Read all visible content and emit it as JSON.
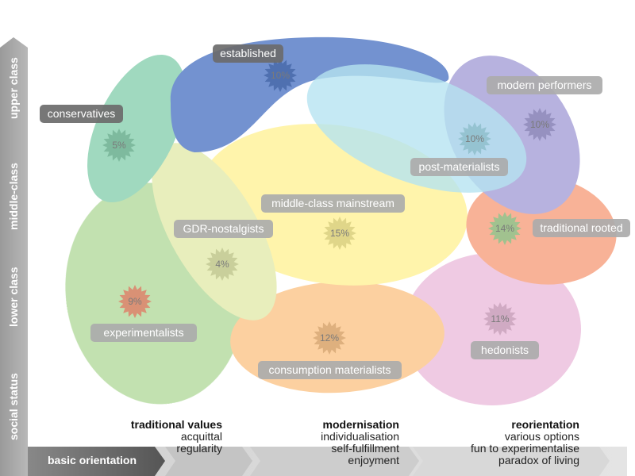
{
  "vertical_axis": {
    "labels": [
      "upper class",
      "middle-class",
      "lower class",
      "social status"
    ]
  },
  "horizontal_axis": {
    "label": "basic orientation",
    "groups": [
      {
        "title": "traditional values",
        "lines": [
          "acquittal",
          "regularity"
        ]
      },
      {
        "title": "modernisation",
        "lines": [
          "individualisation",
          "self-fulfillment",
          "enjoyment"
        ]
      },
      {
        "title": "reorientation",
        "lines": [
          "various options",
          "fun to experimentalise",
          "paradox of living"
        ]
      }
    ]
  },
  "milieus": [
    {
      "id": "conservatives",
      "label": "conservatives",
      "percent": "5%",
      "color": "#8fd3b4",
      "label_style": "dark"
    },
    {
      "id": "established",
      "label": "established",
      "percent": "10%",
      "color": "#5a7fc8",
      "label_style": "dark"
    },
    {
      "id": "post-materialists",
      "label": "post-materialists",
      "percent": "10%",
      "color": "#a9deee",
      "label_style": "light"
    },
    {
      "id": "modern-performers",
      "label": "modern performers",
      "percent": "10%",
      "color": "#aaa5da",
      "label_style": "light"
    },
    {
      "id": "middle-class-mainstream",
      "label": "middle-class mainstream",
      "percent": "15%",
      "color": "#fff39c",
      "label_style": "light"
    },
    {
      "id": "gdr-nostalgists",
      "label": "GDR-nostalgists",
      "percent": "4%",
      "color": "#e4ebb0",
      "label_style": "light"
    },
    {
      "id": "traditional-rooted",
      "label": "traditional rooted",
      "percent": "14%",
      "color": "#b7dca2",
      "label_style": "light"
    },
    {
      "id": "experimentalists",
      "label": "experimentalists",
      "percent": "9%",
      "color": "#f7a585",
      "label_style": "light"
    },
    {
      "id": "hedonists",
      "label": "hedonists",
      "percent": "11%",
      "color": "#ecc1de",
      "label_style": "light"
    },
    {
      "id": "consumption-materialists",
      "label": "consumption materialists",
      "percent": "12%",
      "color": "#fcc88f",
      "label_style": "light"
    }
  ]
}
